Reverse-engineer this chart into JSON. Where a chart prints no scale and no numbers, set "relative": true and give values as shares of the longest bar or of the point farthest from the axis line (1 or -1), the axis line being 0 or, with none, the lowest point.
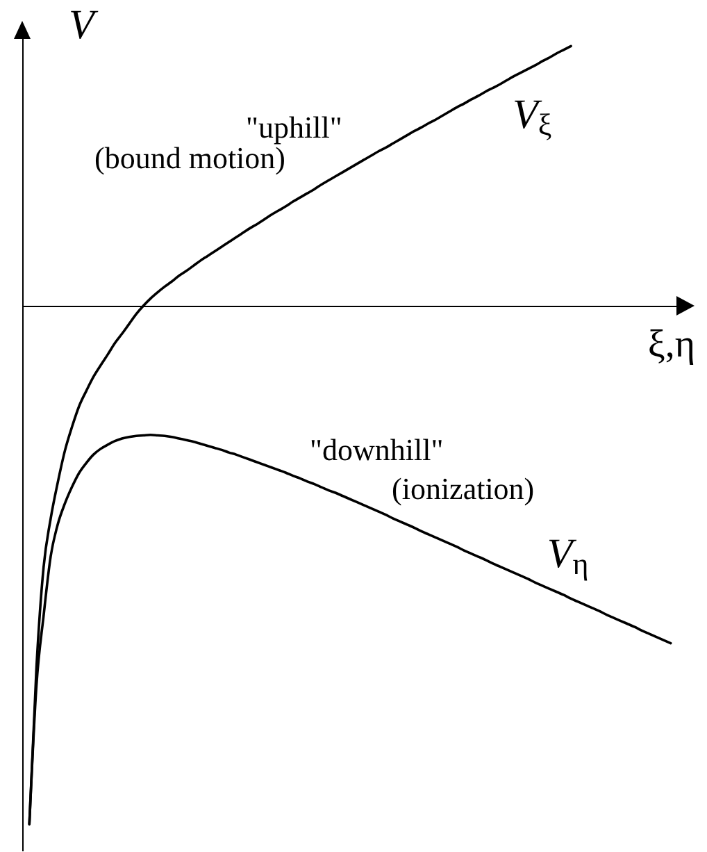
{
  "chart_data": {
    "type": "line",
    "xlabel": "ξ,η",
    "ylabel": "V",
    "relative": true,
    "categories": [
      null,
      null,
      null,
      null,
      null,
      null,
      null,
      null,
      null,
      null,
      null,
      null,
      null,
      null,
      null,
      null,
      null,
      null,
      null,
      null,
      null,
      null,
      null,
      null,
      null,
      null,
      null,
      null,
      null,
      null,
      null,
      null,
      null,
      null,
      null,
      null,
      null,
      null,
      null,
      null,
      null,
      null,
      null,
      null,
      null,
      null,
      null,
      null,
      null,
      null,
      null,
      null,
      null,
      null,
      null,
      null,
      null,
      null,
      null,
      null,
      null,
      null,
      null,
      null,
      null,
      null,
      null,
      null,
      null,
      null,
      null,
      null,
      null,
      null,
      null,
      null,
      null,
      null,
      null,
      null,
      null,
      null,
      null,
      null,
      null,
      null,
      null,
      null,
      null,
      null,
      null
    ],
    "series": [
      {
        "name": "V$_{ξ}$",
        "color": "#000000",
        "values": [
          -1,
          -0.697,
          -0.504,
          -0.41,
          -0.34,
          -0.279,
          -0.233,
          -0.193,
          -0.164,
          -0.137,
          -0.115,
          -0.094,
          -0.072,
          -0.054,
          -0.035,
          -0.016,
          0,
          0.014,
          0.026,
          0.037,
          0.047,
          0.058,
          0.067,
          0.077,
          0.087,
          0.096,
          0.105,
          0.114,
          0.123,
          0.132,
          0.141,
          0.15,
          0.158,
          0.167,
          0.176,
          0.184,
          0.192,
          0.201,
          0.209,
          0.217,
          0.225,
          0.234,
          0.242,
          0.25,
          0.258,
          0.266,
          0.274,
          0.282,
          0.29,
          0.298,
          0.305,
          0.313,
          0.321,
          0.329,
          0.337,
          0.344,
          0.352,
          0.359,
          0.367,
          0.375,
          0.383,
          0.39,
          0.398,
          0.405,
          0.413,
          0.42,
          0.427,
          0.435,
          0.443,
          0.45,
          0.457,
          0.464,
          0.472,
          0.479,
          0.487,
          0.494,
          0.501,
          null,
          null,
          null,
          null,
          null,
          null,
          null,
          null,
          null,
          null,
          null,
          null,
          null,
          null
        ]
      },
      {
        "name": "V$_{η}$",
        "color": "#000000",
        "values": [
          -1,
          -0.732,
          -0.598,
          -0.483,
          -0.421,
          -0.381,
          -0.349,
          -0.322,
          -0.303,
          -0.287,
          -0.276,
          -0.268,
          -0.261,
          -0.256,
          -0.253,
          -0.251,
          -0.25,
          -0.249,
          -0.25,
          -0.251,
          -0.253,
          -0.256,
          -0.259,
          -0.262,
          -0.266,
          -0.27,
          -0.274,
          -0.278,
          -0.283,
          -0.287,
          -0.292,
          -0.297,
          -0.302,
          -0.307,
          -0.312,
          -0.317,
          -0.322,
          -0.328,
          -0.333,
          -0.339,
          -0.344,
          -0.35,
          -0.356,
          -0.361,
          -0.367,
          -0.373,
          -0.379,
          -0.385,
          -0.391,
          -0.397,
          -0.403,
          -0.41,
          -0.416,
          -0.422,
          -0.428,
          -0.435,
          -0.441,
          -0.447,
          -0.453,
          -0.459,
          -0.465,
          -0.472,
          -0.478,
          -0.484,
          -0.49,
          -0.497,
          -0.503,
          -0.509,
          -0.515,
          -0.521,
          -0.527,
          -0.534,
          -0.54,
          -0.546,
          -0.552,
          -0.558,
          -0.565,
          -0.571,
          -0.577,
          -0.583,
          -0.589,
          -0.596,
          -0.602,
          -0.608,
          -0.614,
          -0.62,
          -0.627,
          -0.633,
          -0.639,
          -0.645,
          -0.651
        ]
      }
    ],
    "annotations": [
      "\"uphill\"\n(bound motion)",
      "\"downhill\"\n(ionization)"
    ]
  }
}
